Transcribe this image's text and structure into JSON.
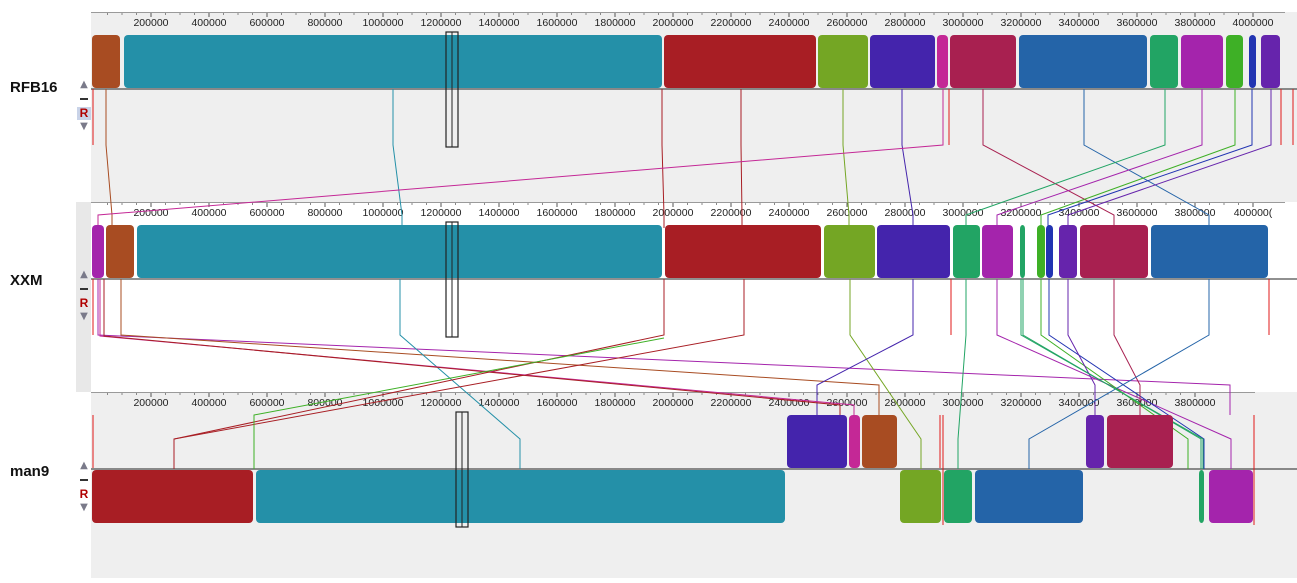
{
  "genomes": [
    {
      "name": "RFB16",
      "ticks": [
        "200000",
        "400000",
        "600000",
        "800000",
        "1000000",
        "1200000",
        "1400000",
        "1600000",
        "1800000",
        "2000000",
        "2200000",
        "2400000",
        "2600000",
        "2800000",
        "3000000",
        "3200000",
        "3400000",
        "3600000",
        "3800000",
        "4000000"
      ],
      "reverse_label": "R"
    },
    {
      "name": "XXM",
      "ticks": [
        "200000",
        "400000",
        "600000",
        "800000",
        "1000000",
        "1200000",
        "1400000",
        "1600000",
        "1800000",
        "2000000",
        "2200000",
        "2400000",
        "2600000",
        "2800000",
        "3000000",
        "3200000",
        "3400000",
        "3600000",
        "3800000",
        "400000("
      ],
      "reverse_label": "R"
    },
    {
      "name": "man9",
      "ticks": [
        "200000",
        "400000",
        "600000",
        "800000",
        "1000000",
        "1200000",
        "1400000",
        "1600000",
        "1800000",
        "2000000",
        "2200000",
        "2400000",
        "2600000",
        "2800000",
        "3000000",
        "3200000",
        "3400000",
        "3600000",
        "3800000"
      ],
      "reverse_label": "R"
    }
  ],
  "colors": {
    "orange": "#a84c22",
    "teal": "#2490a8",
    "red": "#a81e24",
    "lime": "#74a624",
    "indigo": "#4424ac",
    "magenta": "#c42896",
    "crimson": "#a82050",
    "blue": "#2464a8",
    "green": "#22a464",
    "purple": "#a424ac",
    "brightgreen": "#3eb026",
    "navy": "#2234b2",
    "violet": "#6624ac",
    "background": "#efefef",
    "boundary": "#e01818"
  }
}
